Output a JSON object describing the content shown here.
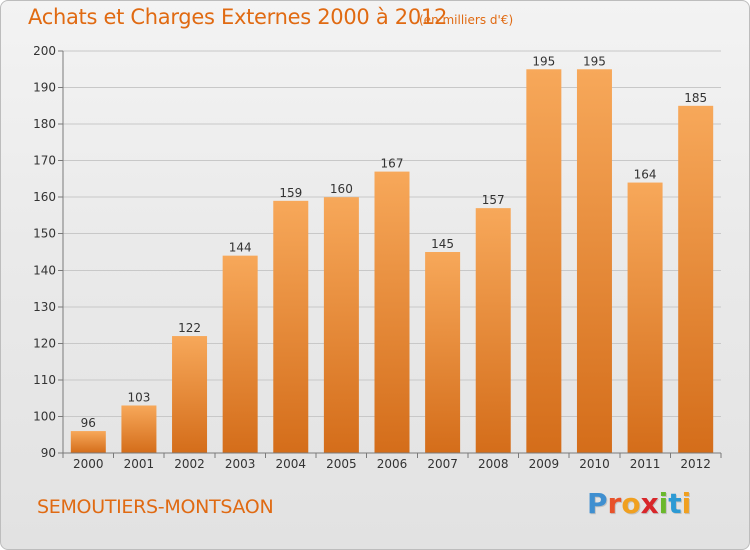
{
  "header": {
    "title": "Achats et Charges Externes 2000 à 2012",
    "subtitle": "(en milliers d'€)"
  },
  "footer": {
    "commune": "SEMOUTIERS-MONTSAON",
    "logo_letters": [
      "P",
      "r",
      "o",
      "x",
      "i",
      "t",
      "i"
    ],
    "logo_colors": [
      "#3f8fd0",
      "#e8522a",
      "#f0a020",
      "#d8262a",
      "#6ab82c",
      "#2c9ad4",
      "#f0a020"
    ]
  },
  "colors": {
    "bar_top": "#f7a85a",
    "bar_bottom": "#d46d1a",
    "accent": "#e06a12",
    "grid": "#c8c8c8",
    "axis": "#7a7a7a"
  },
  "chart_data": {
    "type": "bar",
    "categories": [
      "2000",
      "2001",
      "2002",
      "2003",
      "2004",
      "2005",
      "2006",
      "2007",
      "2008",
      "2009",
      "2010",
      "2011",
      "2012"
    ],
    "values": [
      96,
      103,
      122,
      144,
      159,
      160,
      167,
      145,
      157,
      195,
      195,
      164,
      185
    ],
    "value_labels": [
      "96",
      "103",
      "122",
      "144",
      "159",
      "160",
      "167",
      "145",
      "157",
      "195",
      "195",
      "164",
      "185"
    ],
    "title": "Achats et Charges Externes 2000 à 2012",
    "subtitle": "(en milliers d'€)",
    "xlabel": "",
    "ylabel": "",
    "ylim": [
      90,
      200
    ],
    "yticks": [
      90,
      100,
      110,
      120,
      130,
      140,
      150,
      160,
      170,
      180,
      190,
      200
    ],
    "grid": true,
    "legend": "none"
  }
}
